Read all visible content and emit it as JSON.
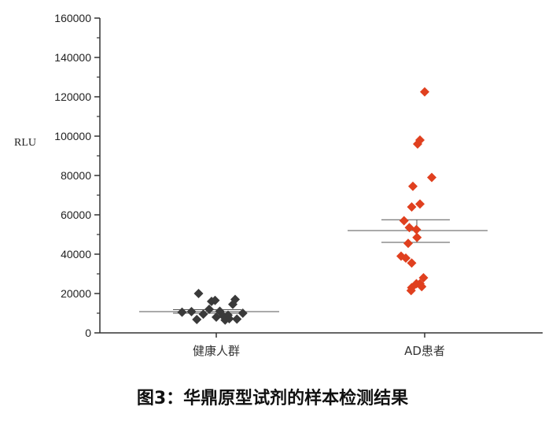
{
  "caption": "图3：华鼎原型试剂的样本检测结果",
  "chart_data": {
    "type": "scatter",
    "ylabel": "RLU",
    "ylim": [
      0,
      160000
    ],
    "yticks": [
      0,
      20000,
      40000,
      60000,
      80000,
      100000,
      120000,
      140000,
      160000
    ],
    "categories": [
      "健康人群",
      "AD患者"
    ],
    "colors": {
      "健康人群": "#3a3a3a",
      "AD患者": "#e0401f",
      "lines": "#555555"
    },
    "groups": [
      {
        "category": "健康人群",
        "mean": 10800,
        "sem": [
          10000,
          11800
        ],
        "points": [
          {
            "x": -0.58,
            "y": 10500
          },
          {
            "x": -0.42,
            "y": 10800
          },
          {
            "x": -0.33,
            "y": 6800
          },
          {
            "x": -0.3,
            "y": 20000
          },
          {
            "x": -0.22,
            "y": 9500
          },
          {
            "x": -0.12,
            "y": 12000
          },
          {
            "x": -0.08,
            "y": 16000
          },
          {
            "x": -0.02,
            "y": 16500
          },
          {
            "x": 0.0,
            "y": 8000
          },
          {
            "x": 0.06,
            "y": 11000
          },
          {
            "x": 0.12,
            "y": 8500
          },
          {
            "x": 0.15,
            "y": 6500
          },
          {
            "x": 0.22,
            "y": 7200
          },
          {
            "x": 0.28,
            "y": 14500
          },
          {
            "x": 0.32,
            "y": 17000
          },
          {
            "x": 0.35,
            "y": 7000
          },
          {
            "x": 0.45,
            "y": 10000
          },
          {
            "x": 0.2,
            "y": 9000
          }
        ]
      },
      {
        "category": "AD患者",
        "mean": 52000,
        "sem": [
          46000,
          57500
        ],
        "points": [
          {
            "x": 0.0,
            "y": 122500
          },
          {
            "x": -0.08,
            "y": 98000
          },
          {
            "x": -0.12,
            "y": 96000
          },
          {
            "x": 0.12,
            "y": 79000
          },
          {
            "x": -0.2,
            "y": 74500
          },
          {
            "x": -0.08,
            "y": 65500
          },
          {
            "x": -0.22,
            "y": 64000
          },
          {
            "x": -0.35,
            "y": 57000
          },
          {
            "x": -0.26,
            "y": 53500
          },
          {
            "x": -0.14,
            "y": 52500
          },
          {
            "x": -0.13,
            "y": 48500
          },
          {
            "x": -0.28,
            "y": 45500
          },
          {
            "x": -0.4,
            "y": 39000
          },
          {
            "x": -0.32,
            "y": 38000
          },
          {
            "x": -0.22,
            "y": 35500
          },
          {
            "x": -0.02,
            "y": 28000
          },
          {
            "x": -0.14,
            "y": 25000
          },
          {
            "x": -0.05,
            "y": 23500
          },
          {
            "x": -0.22,
            "y": 23000
          },
          {
            "x": -0.23,
            "y": 21500
          },
          {
            "x": -0.08,
            "y": 25000
          }
        ]
      }
    ]
  }
}
